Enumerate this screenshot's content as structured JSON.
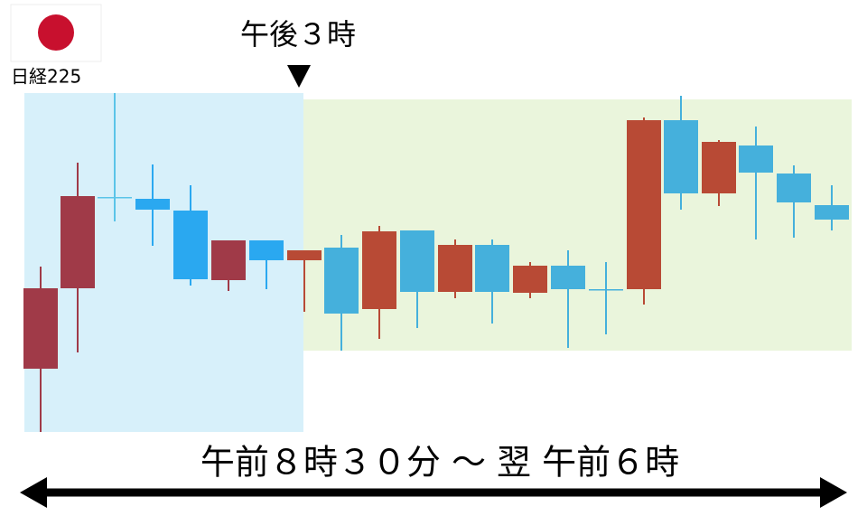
{
  "header": {
    "flag_label": "日経225"
  },
  "marker": {
    "label": "午後３時"
  },
  "range": {
    "label": "午前８時３０分 ～ 翌 午前６時"
  }
}
